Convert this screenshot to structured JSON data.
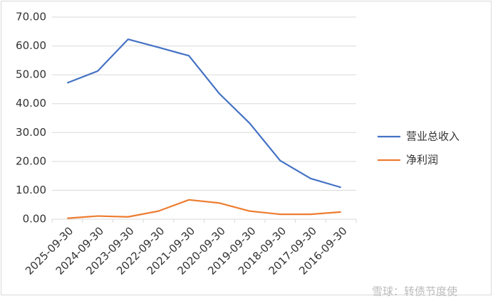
{
  "chart_data": {
    "type": "line",
    "categories": [
      "2025-09-30",
      "2024-09-30",
      "2023-09-30",
      "2022-09-30",
      "2021-09-30",
      "2020-09-30",
      "2019-09-30",
      "2018-09-30",
      "2017-09-30",
      "2016-09-30"
    ],
    "series": [
      {
        "name": "营业总收入",
        "color": "#4472c4",
        "values": [
          47.2,
          51.3,
          62.3,
          59.5,
          56.6,
          43.5,
          33.2,
          20.3,
          14.1,
          11.0
        ]
      },
      {
        "name": "净利润",
        "color": "#ed7d31",
        "values": [
          0.3,
          1.1,
          0.8,
          2.8,
          6.7,
          5.6,
          2.8,
          1.7,
          1.7,
          2.5
        ]
      }
    ],
    "ylim": [
      0,
      70
    ],
    "yticks": [
      {
        "value": 0,
        "label": "0.00"
      },
      {
        "value": 10,
        "label": "10.00"
      },
      {
        "value": 20,
        "label": "20.00"
      },
      {
        "value": 30,
        "label": "30.00"
      },
      {
        "value": 40,
        "label": "40.00"
      },
      {
        "value": 50,
        "label": "50.00"
      },
      {
        "value": 60,
        "label": "60.00"
      },
      {
        "value": 70,
        "label": "70.00"
      }
    ],
    "grid": true,
    "legend": "right",
    "watermark": "雪球：转债节度使"
  }
}
